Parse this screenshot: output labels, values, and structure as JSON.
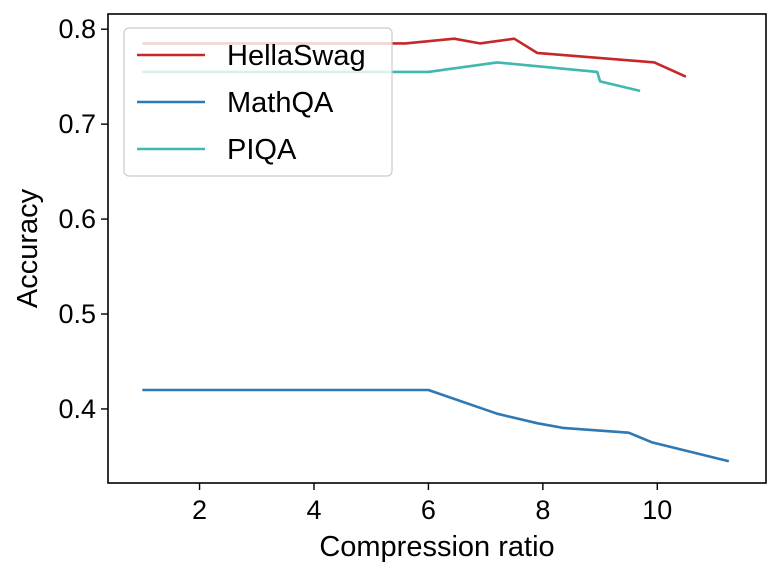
{
  "chart_data": {
    "type": "line",
    "title": "",
    "xlabel": "Compression ratio",
    "ylabel": "Accuracy",
    "xlim": [
      0.4,
      11.9
    ],
    "ylim": [
      0.322,
      0.816
    ],
    "xticks": [
      2,
      4,
      6,
      8,
      10
    ],
    "xtick_labels": [
      "2",
      "4",
      "6",
      "8",
      "10"
    ],
    "yticks": [
      0.4,
      0.5,
      0.6,
      0.7,
      0.8
    ],
    "ytick_labels": [
      "0.4",
      "0.5",
      "0.6",
      "0.7",
      "0.8"
    ],
    "grid": false,
    "legend_position": "upper-left",
    "series": [
      {
        "name": "HellaSwag",
        "color": "#c62828",
        "points": [
          [
            1.0,
            0.785
          ],
          [
            5.6,
            0.785
          ],
          [
            6.45,
            0.79
          ],
          [
            6.9,
            0.785
          ],
          [
            7.5,
            0.79
          ],
          [
            7.9,
            0.775
          ],
          [
            9.95,
            0.765
          ],
          [
            10.5,
            0.75
          ]
        ]
      },
      {
        "name": "MathQA",
        "color": "#2e78b4",
        "points": [
          [
            1.0,
            0.42
          ],
          [
            6.0,
            0.42
          ],
          [
            7.2,
            0.395
          ],
          [
            7.9,
            0.385
          ],
          [
            8.35,
            0.38
          ],
          [
            9.5,
            0.375
          ],
          [
            9.9,
            0.365
          ],
          [
            11.25,
            0.345
          ]
        ]
      },
      {
        "name": "PIQA",
        "color": "#3fb8ad",
        "points": [
          [
            1.0,
            0.755
          ],
          [
            6.0,
            0.755
          ],
          [
            7.2,
            0.765
          ],
          [
            8.95,
            0.755
          ],
          [
            9.0,
            0.745
          ],
          [
            9.7,
            0.735
          ]
        ]
      }
    ]
  }
}
